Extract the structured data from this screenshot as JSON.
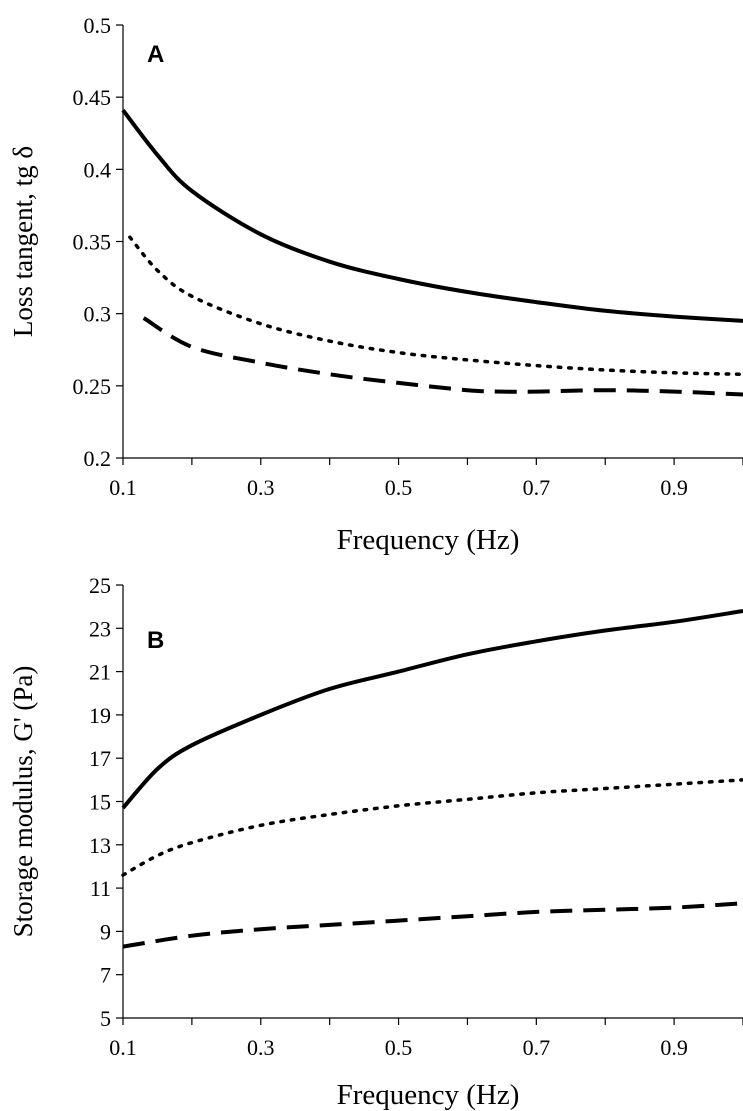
{
  "chart_data": [
    {
      "type": "line",
      "panel_label": "A",
      "xlabel": "Frequency (Hz)",
      "ylabel": "Loss tangent, tg δ",
      "xlim": [
        0.1,
        1.0
      ],
      "ylim": [
        0.2,
        0.5
      ],
      "xticks": [
        "0.1",
        "0.3",
        "0.5",
        "0.7",
        "0.9"
      ],
      "yticks": [
        "0.2",
        "0.25",
        "0.3",
        "0.35",
        "0.4",
        "0.45",
        "0.5"
      ],
      "grid": false,
      "series": [
        {
          "style": "solid",
          "x": [
            0.1,
            0.15,
            0.2,
            0.3,
            0.4,
            0.5,
            0.6,
            0.7,
            0.8,
            0.9,
            1.0
          ],
          "y": [
            0.441,
            0.41,
            0.385,
            0.355,
            0.336,
            0.324,
            0.315,
            0.308,
            0.302,
            0.298,
            0.295
          ]
        },
        {
          "style": "dotted",
          "x": [
            0.11,
            0.15,
            0.2,
            0.3,
            0.4,
            0.5,
            0.6,
            0.7,
            0.8,
            0.9,
            1.0
          ],
          "y": [
            0.353,
            0.33,
            0.312,
            0.293,
            0.281,
            0.273,
            0.268,
            0.264,
            0.261,
            0.259,
            0.258
          ]
        },
        {
          "style": "dashed",
          "x": [
            0.13,
            0.2,
            0.3,
            0.4,
            0.5,
            0.6,
            0.65,
            0.7,
            0.8,
            0.9,
            1.0
          ],
          "y": [
            0.297,
            0.277,
            0.266,
            0.258,
            0.252,
            0.247,
            0.246,
            0.246,
            0.247,
            0.246,
            0.244
          ]
        }
      ]
    },
    {
      "type": "line",
      "panel_label": "B",
      "xlabel": "Frequency (Hz)",
      "ylabel": "Storage modulus, G' (Pa)",
      "xlim": [
        0.1,
        1.0
      ],
      "ylim": [
        5,
        25
      ],
      "xticks": [
        "0.1",
        "0.3",
        "0.5",
        "0.7",
        "0.9"
      ],
      "yticks": [
        "5",
        "7",
        "9",
        "11",
        "13",
        "15",
        "17",
        "19",
        "21",
        "23",
        "25"
      ],
      "grid": false,
      "series": [
        {
          "style": "solid",
          "x": [
            0.1,
            0.15,
            0.2,
            0.3,
            0.4,
            0.5,
            0.6,
            0.7,
            0.8,
            0.9,
            1.0
          ],
          "y": [
            14.7,
            16.5,
            17.6,
            19.0,
            20.2,
            21.0,
            21.8,
            22.4,
            22.9,
            23.3,
            23.8
          ]
        },
        {
          "style": "dotted",
          "x": [
            0.1,
            0.15,
            0.2,
            0.3,
            0.4,
            0.5,
            0.6,
            0.7,
            0.8,
            0.9,
            1.0
          ],
          "y": [
            11.6,
            12.5,
            13.1,
            13.9,
            14.4,
            14.8,
            15.1,
            15.4,
            15.6,
            15.8,
            16.0
          ]
        },
        {
          "style": "dashed",
          "x": [
            0.1,
            0.2,
            0.3,
            0.4,
            0.5,
            0.6,
            0.7,
            0.8,
            0.9,
            1.0
          ],
          "y": [
            8.3,
            8.8,
            9.1,
            9.3,
            9.5,
            9.7,
            9.9,
            10.0,
            10.1,
            10.3
          ]
        }
      ]
    }
  ]
}
